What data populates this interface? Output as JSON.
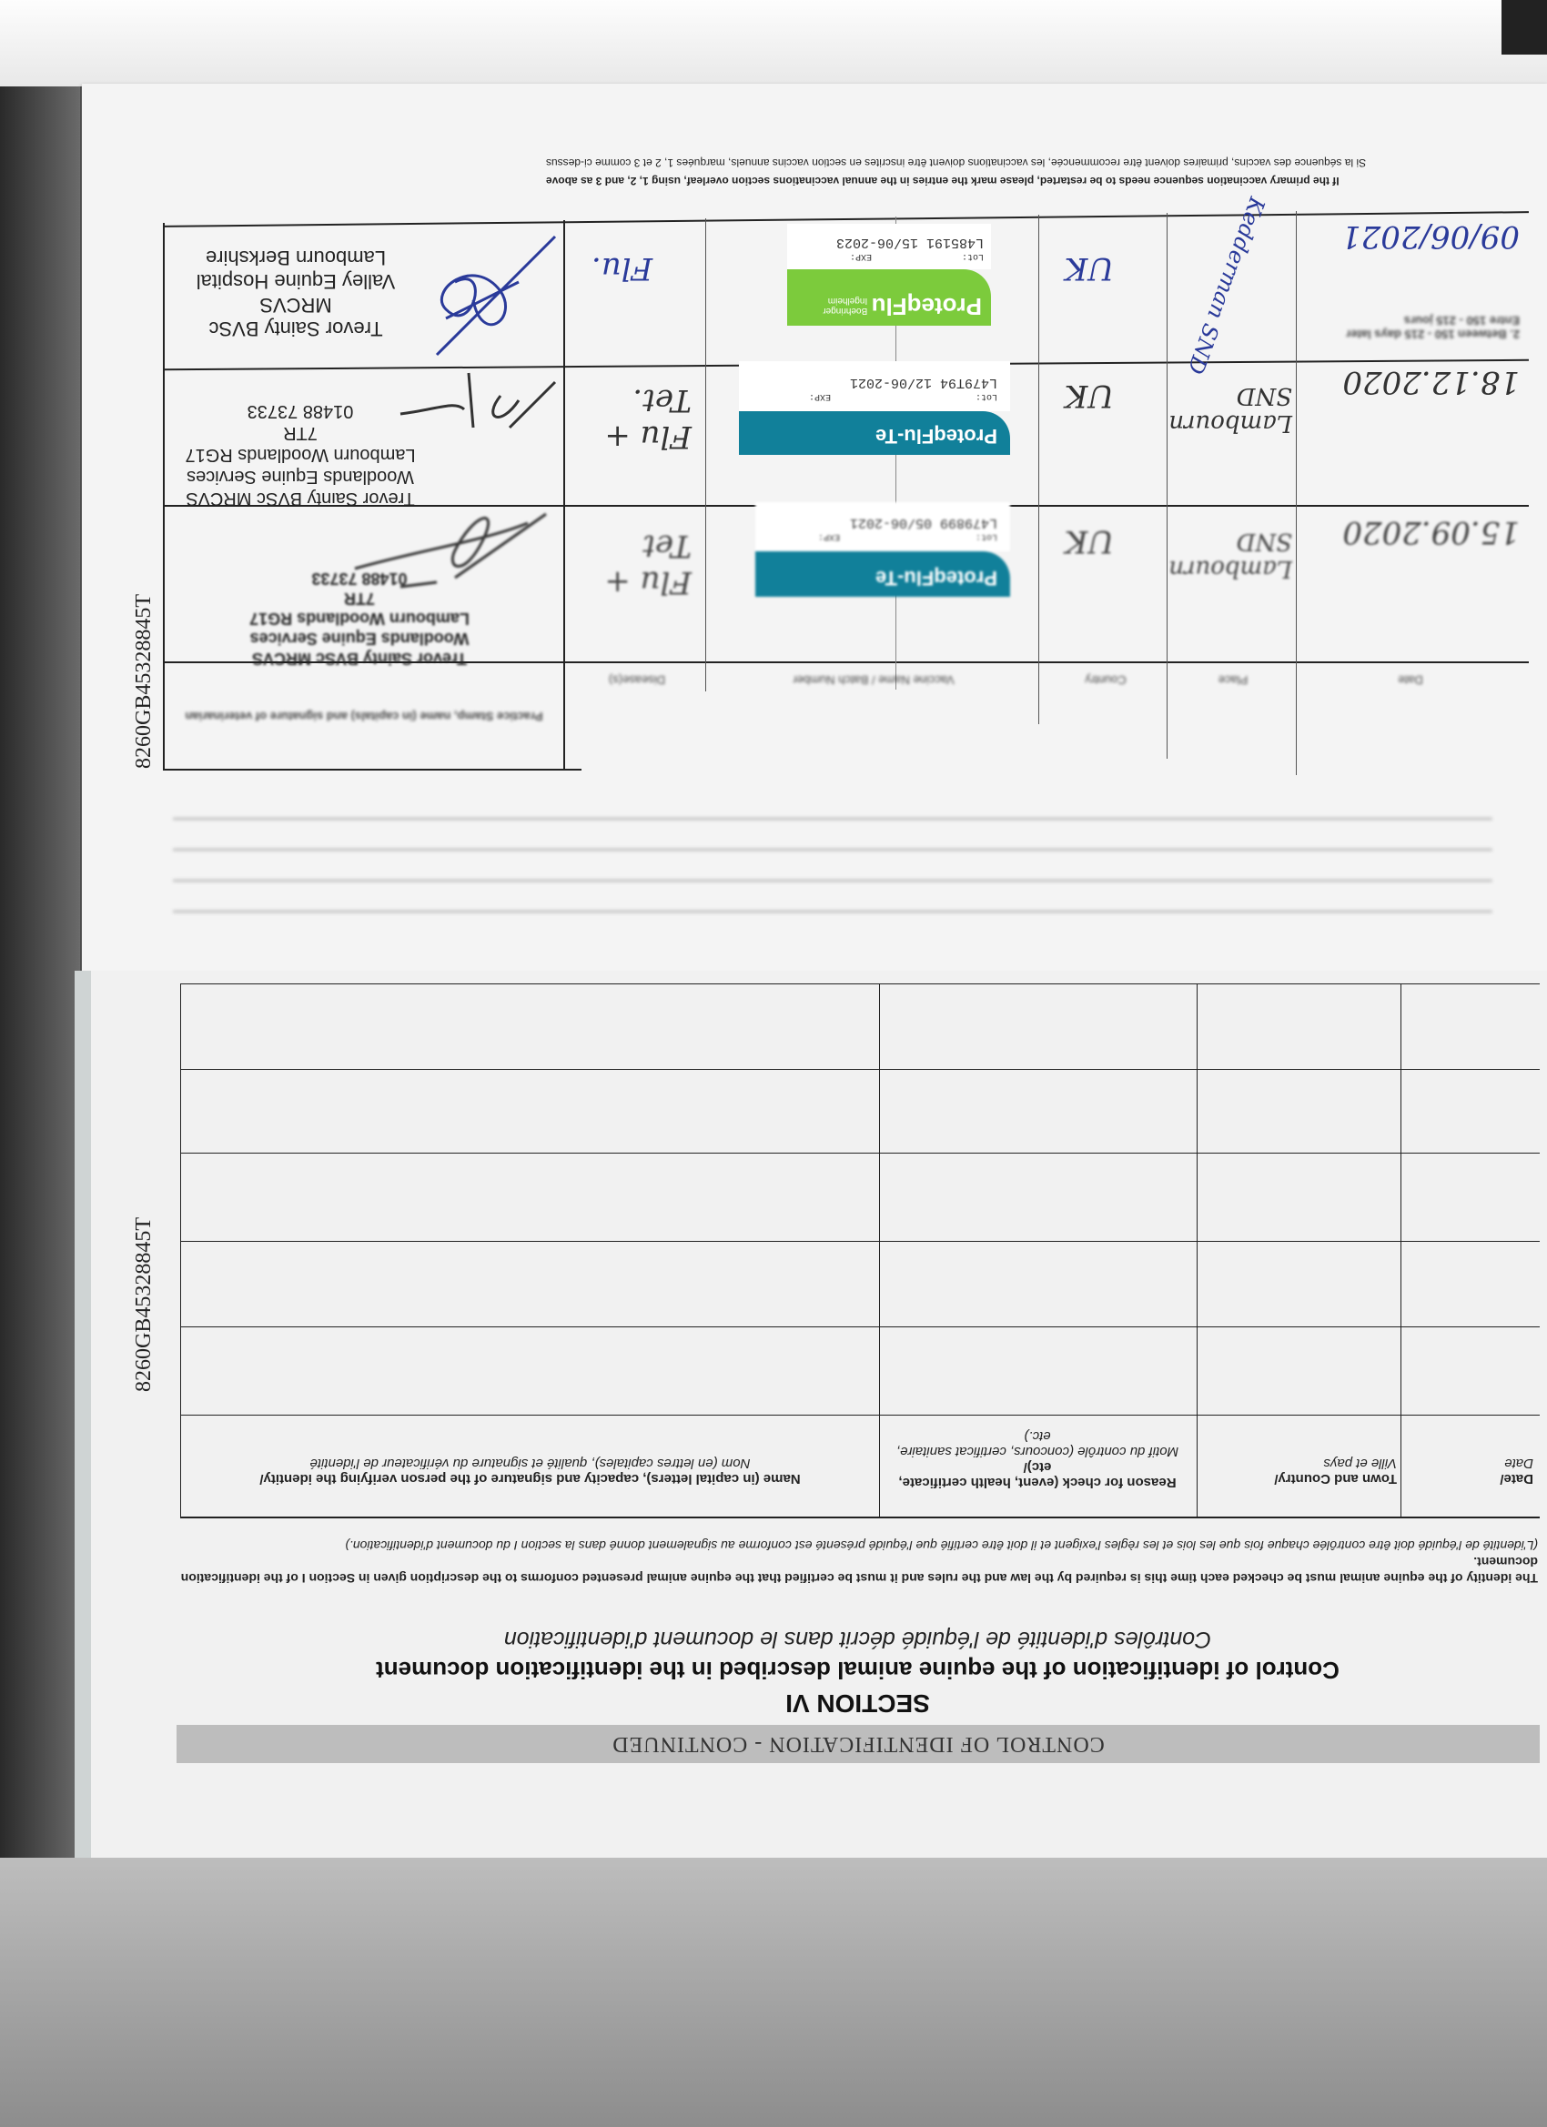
{
  "document": {
    "id_number": "8260GB45328845T",
    "vaccination_page": {
      "restart_note_en": "If the primary vaccination sequence needs to be restarted, please mark the entries in the annual vaccinations section overleaf, using 1, 2, and 3 as above",
      "restart_note_fr": "Si la séquence des vaccins, primaires doivent être recommencée, les vaccinations doivent être inscrites en section vaccins annuels, marquées 1, 2 et 3 comme ci-dessus",
      "row_label_2": "2. Between 150 - 215 days later",
      "row_label_2_fr": "Entre 150 - 215 jours",
      "column_headers": [
        "Date",
        "Place",
        "Country",
        "Vaccine Name / Batch Number",
        "Disease(s)",
        "Practice Stamp, name (in capitals) and signature of veterinarian"
      ],
      "rows": [
        {
          "date": "09/06/2021",
          "place": "Kedderman SND",
          "country": "UK",
          "vaccine": "ProteqFlu",
          "manufacturer": "Boehringer Ingelheim",
          "lot": "L485191",
          "exp": "15/06-2023",
          "lot_label": "Lot:",
          "exp_label": "EXP:",
          "disease": "Flu.",
          "stamp": [
            "Trevor Sainty BVSc MRCVS",
            "Valley Equine Hospital",
            "Lambourn Berkshire"
          ]
        },
        {
          "date": "18.12.2020",
          "place": "Lambourn SND",
          "country": "UK",
          "vaccine": "ProteqFlu-Te",
          "lot": "L479T94",
          "exp": "12/06-2021",
          "lot_label": "Lot:",
          "exp_label": "EXP:",
          "disease": "Flu + Tet.",
          "stamp": [
            "Trevor Sainty BVSc MRCVS",
            "Woodlands Equine Services",
            "Lambourn Woodlands RG17 7TR",
            "01488 73733"
          ]
        },
        {
          "date": "15.09.2020",
          "place": "Lambourn SND",
          "country": "UK",
          "vaccine": "ProteqFlu-Te",
          "lot": "L479899",
          "exp": "05/06-2021",
          "lot_label": "Lot:",
          "exp_label": "EXP:",
          "disease": "Flu + Tet",
          "stamp": [
            "Trevor Sainty BVSc MRCVS",
            "Woodlands Equine Services",
            "Lambourn Woodlands RG17 7TR",
            "01488 73733"
          ]
        }
      ]
    },
    "identification_page": {
      "banner": "CONTROL OF IDENTIFICATION - CONTINUED",
      "section": "SECTION VI",
      "title_en": "Control of identification of the equine animal described in the identification document",
      "title_fr": "Contrôles d'identité de l'équidé décrit dans le document d'identification",
      "para_en": "The identity of the equine animal must be checked each time this is required by the law and the rules and it must be certified that the equine animal presented conforms to the description given in Section I of the identification document.",
      "para_fr": "(L'identité de l'équidé doit être contrôlée chaque fois que les lois et les règles l'exigent et il doit être certifié que l'équidé présenté est conforme au signalement donné dans la section I du document d'identification.)",
      "headers": [
        {
          "en": "Date/",
          "fr": "Date"
        },
        {
          "en": "Town and Country/",
          "fr": "Ville et pays"
        },
        {
          "en": "Reason for check (event, health certificate, etc)/",
          "fr": "Motif du contrôle (concours, certificat sanitaire, etc.)"
        },
        {
          "en": "Name (in capital letters), capacity and signature of the person verifying the identity/",
          "fr": "Nom (en lettres capitales), qualité et signature du vérificateur de l'identité"
        }
      ]
    }
  },
  "colors": {
    "ink_blue": "#2a3a9a",
    "proteq_green": "#7ccb3c",
    "proteq_teal": "#11809a",
    "banner_gray": "#bdbdbd"
  }
}
